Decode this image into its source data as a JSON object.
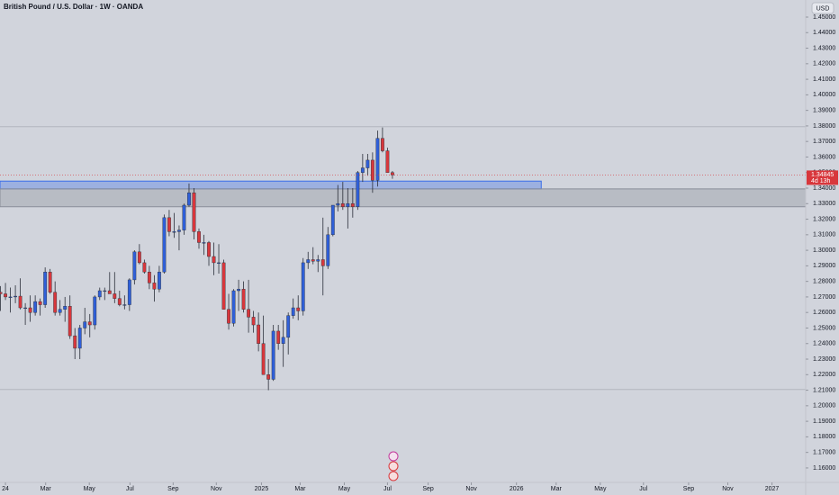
{
  "chart_data": {
    "type": "candlestick",
    "title": "British Pound / U.S. Dollar · 1W · OANDA",
    "currency": "USD",
    "up_color": "#2f5fd8",
    "down_color": "#d8373c",
    "wick_color": "#2a2e39",
    "open": [
      1.273,
      1.272,
      1.27,
      1.27,
      1.2705,
      1.263,
      1.263,
      1.26,
      1.267,
      1.265,
      1.286,
      1.273,
      1.26,
      1.262,
      1.264,
      1.245,
      1.237,
      1.25,
      1.254,
      1.252,
      1.27,
      1.274,
      1.274,
      1.272,
      1.269,
      1.265,
      1.265,
      1.281,
      1.299,
      1.292,
      1.286,
      1.279,
      1.275,
      1.286,
      1.321,
      1.312,
      1.312,
      1.313,
      1.329,
      1.337,
      1.312,
      1.305,
      1.305,
      1.296,
      1.292,
      1.292,
      1.262,
      1.253,
      1.274,
      1.275,
      1.262,
      1.257,
      1.252,
      1.24,
      1.22,
      1.217,
      1.248,
      1.24,
      1.244,
      1.258,
      1.263,
      1.261,
      1.292,
      1.294,
      1.293,
      1.294,
      1.29,
      1.31,
      1.329,
      1.33,
      1.328,
      1.33,
      1.328,
      1.35,
      1.353,
      1.358,
      1.345,
      1.372,
      1.364,
      1.35
    ],
    "high": [
      1.277,
      1.279,
      1.276,
      1.2775,
      1.282,
      1.266,
      1.271,
      1.271,
      1.269,
      1.289,
      1.288,
      1.28,
      1.268,
      1.27,
      1.271,
      1.25,
      1.252,
      1.263,
      1.259,
      1.271,
      1.276,
      1.276,
      1.286,
      1.286,
      1.274,
      1.271,
      1.282,
      1.3,
      1.304,
      1.294,
      1.29,
      1.284,
      1.29,
      1.323,
      1.326,
      1.324,
      1.316,
      1.33,
      1.343,
      1.34,
      1.314,
      1.31,
      1.306,
      1.305,
      1.304,
      1.294,
      1.272,
      1.275,
      1.281,
      1.28,
      1.281,
      1.261,
      1.26,
      1.258,
      1.23,
      1.252,
      1.252,
      1.255,
      1.26,
      1.269,
      1.271,
      1.295,
      1.299,
      1.302,
      1.297,
      1.321,
      1.315,
      1.329,
      1.342,
      1.344,
      1.34,
      1.34,
      1.351,
      1.362,
      1.362,
      1.363,
      1.377,
      1.379,
      1.366,
      1.351
    ],
    "low": [
      1.261,
      1.268,
      1.26,
      1.266,
      1.262,
      1.252,
      1.254,
      1.258,
      1.258,
      1.263,
      1.272,
      1.258,
      1.258,
      1.254,
      1.243,
      1.23,
      1.23,
      1.246,
      1.244,
      1.249,
      1.268,
      1.268,
      1.272,
      1.266,
      1.264,
      1.262,
      1.261,
      1.278,
      1.291,
      1.285,
      1.275,
      1.267,
      1.273,
      1.285,
      1.309,
      1.308,
      1.3,
      1.31,
      1.328,
      1.307,
      1.301,
      1.297,
      1.29,
      1.284,
      1.285,
      1.262,
      1.249,
      1.251,
      1.261,
      1.26,
      1.247,
      1.247,
      1.235,
      1.22,
      1.21,
      1.216,
      1.236,
      1.225,
      1.233,
      1.256,
      1.255,
      1.258,
      1.288,
      1.291,
      1.286,
      1.271,
      1.288,
      1.309,
      1.325,
      1.326,
      1.314,
      1.321,
      1.326,
      1.344,
      1.348,
      1.337,
      1.341,
      1.363,
      1.35,
      1.346
    ],
    "close": [
      1.272,
      1.27,
      1.27,
      1.2705,
      1.263,
      1.263,
      1.26,
      1.267,
      1.265,
      1.286,
      1.273,
      1.26,
      1.262,
      1.264,
      1.245,
      1.237,
      1.25,
      1.254,
      1.252,
      1.27,
      1.274,
      1.274,
      1.272,
      1.269,
      1.265,
      1.265,
      1.281,
      1.299,
      1.292,
      1.286,
      1.279,
      1.275,
      1.286,
      1.321,
      1.312,
      1.312,
      1.313,
      1.329,
      1.337,
      1.312,
      1.305,
      1.305,
      1.296,
      1.292,
      1.292,
      1.262,
      1.253,
      1.274,
      1.275,
      1.262,
      1.257,
      1.252,
      1.24,
      1.22,
      1.217,
      1.248,
      1.24,
      1.244,
      1.258,
      1.263,
      1.261,
      1.292,
      1.294,
      1.293,
      1.294,
      1.29,
      1.31,
      1.329,
      1.33,
      1.328,
      1.33,
      1.328,
      1.35,
      1.353,
      1.358,
      1.345,
      1.372,
      1.364,
      1.35,
      1.34845
    ],
    "last_price": {
      "value": 1.34845,
      "label": "1.34845"
    },
    "countdown": "4d 13h",
    "zones": [
      {
        "top": 1.3445,
        "bottom": 1.3395,
        "end": 109,
        "color": "#3a6ee8"
      },
      {
        "top": 1.3395,
        "bottom": 1.328,
        "color": "#8a8e99"
      }
    ],
    "horizontal_lines": [
      1.3795,
      1.2105
    ],
    "xlim": [
      -0.1,
      162.3
    ],
    "ylim": [
      1.1507,
      1.461
    ],
    "xticks": [
      {
        "value": 1,
        "label": "24"
      },
      {
        "value": 9.1,
        "label": "Mar"
      },
      {
        "value": 17.9,
        "label": "May"
      },
      {
        "value": 26.1,
        "label": "Jul"
      },
      {
        "value": 34.8,
        "label": "Sep"
      },
      {
        "value": 43.5,
        "label": "Nov"
      },
      {
        "value": 52.6,
        "label": "2025"
      },
      {
        "value": 60.4,
        "label": "Mar"
      },
      {
        "value": 69.3,
        "label": "May"
      },
      {
        "value": 78,
        "label": "Jul"
      },
      {
        "value": 86.2,
        "label": "Sep"
      },
      {
        "value": 94.9,
        "label": "Nov"
      },
      {
        "value": 104,
        "label": "2026"
      },
      {
        "value": 112,
        "label": "Mar"
      },
      {
        "value": 120.9,
        "label": "May"
      },
      {
        "value": 129.6,
        "label": "Jul"
      },
      {
        "value": 138.7,
        "label": "Sep"
      },
      {
        "value": 146.6,
        "label": "Nov"
      },
      {
        "value": 155.5,
        "label": "2027"
      }
    ],
    "yticks": [
      {
        "value": 1.16,
        "label": "1.16000"
      },
      {
        "value": 1.17,
        "label": "1.17000"
      },
      {
        "value": 1.18,
        "label": "1.18000"
      },
      {
        "value": 1.19,
        "label": "1.19000"
      },
      {
        "value": 1.2,
        "label": "1.20000"
      },
      {
        "value": 1.21,
        "label": "1.21000"
      },
      {
        "value": 1.22,
        "label": "1.22000"
      },
      {
        "value": 1.23,
        "label": "1.23000"
      },
      {
        "value": 1.24,
        "label": "1.24000"
      },
      {
        "value": 1.25,
        "label": "1.25000"
      },
      {
        "value": 1.26,
        "label": "1.26000"
      },
      {
        "value": 1.27,
        "label": "1.27000"
      },
      {
        "value": 1.28,
        "label": "1.28000"
      },
      {
        "value": 1.29,
        "label": "1.29000"
      },
      {
        "value": 1.3,
        "label": "1.30000"
      },
      {
        "value": 1.31,
        "label": "1.31000"
      },
      {
        "value": 1.32,
        "label": "1.32000"
      },
      {
        "value": 1.33,
        "label": "1.33000"
      },
      {
        "value": 1.34,
        "label": "1.34000"
      },
      {
        "value": 1.35,
        "label": "1.35000"
      },
      {
        "value": 1.36,
        "label": "1.36000"
      },
      {
        "value": 1.37,
        "label": "1.37000"
      },
      {
        "value": 1.38,
        "label": "1.38000"
      },
      {
        "value": 1.39,
        "label": "1.39000"
      },
      {
        "value": 1.4,
        "label": "1.40000"
      },
      {
        "value": 1.41,
        "label": "1.41000"
      },
      {
        "value": 1.42,
        "label": "1.42000"
      },
      {
        "value": 1.43,
        "label": "1.43000"
      },
      {
        "value": 1.44,
        "label": "1.44000"
      },
      {
        "value": 1.45,
        "label": "1.45000"
      }
    ],
    "grid": false
  }
}
